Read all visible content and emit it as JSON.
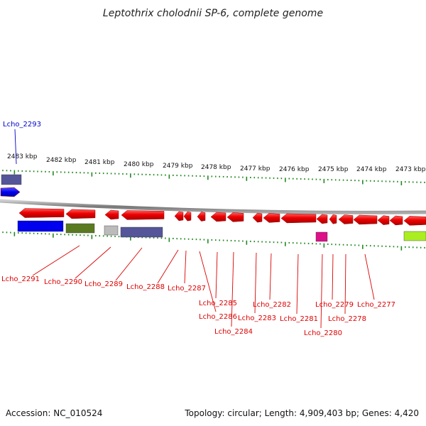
{
  "title": "Leptothrix cholodnii SP-6, complete genome",
  "footer": {
    "accession": "Accession: NC_010524",
    "summary": "Topology: circular; Length: 4,909,403 bp; Genes: 4,420"
  },
  "kbp_labels": [
    "2483 kbp",
    "2482 kbp",
    "2481 kbp",
    "2480 kbp",
    "2479 kbp",
    "2478 kbp",
    "2477 kbp",
    "2476 kbp",
    "2475 kbp",
    "2474 kbp",
    "2473 kbp"
  ],
  "genes": [
    {
      "name": "Lcho_2293",
      "color": "#0000cc"
    },
    {
      "name": "Lcho_2291",
      "color": "#dd0000"
    },
    {
      "name": "Lcho_2290",
      "color": "#dd0000"
    },
    {
      "name": "Lcho_2289",
      "color": "#dd0000"
    },
    {
      "name": "Lcho_2288",
      "color": "#dd0000"
    },
    {
      "name": "Lcho_2287",
      "color": "#dd0000"
    },
    {
      "name": "Lcho_2286",
      "color": "#dd0000"
    },
    {
      "name": "Lcho_2285",
      "color": "#dd0000"
    },
    {
      "name": "Lcho_2284",
      "color": "#dd0000"
    },
    {
      "name": "Lcho_2283",
      "color": "#dd0000"
    },
    {
      "name": "Lcho_2282",
      "color": "#dd0000"
    },
    {
      "name": "Lcho_2281",
      "color": "#dd0000"
    },
    {
      "name": "Lcho_2280",
      "color": "#dd0000"
    },
    {
      "name": "Lcho_2279",
      "color": "#dd0000"
    },
    {
      "name": "Lcho_2278",
      "color": "#dd0000"
    },
    {
      "name": "Lcho_2277",
      "color": "#dd0000"
    }
  ],
  "colors": {
    "cds_forward": "#ee0000",
    "cds_blue": "#0000ee",
    "backbone": "#888888",
    "ticks": "#228822",
    "cog_purple": "#55559a",
    "cog_olive": "#5a7a22",
    "cog_gray": "#bbbbbb",
    "cog_pink": "#dd1188",
    "cog_lime": "#aaee22"
  }
}
